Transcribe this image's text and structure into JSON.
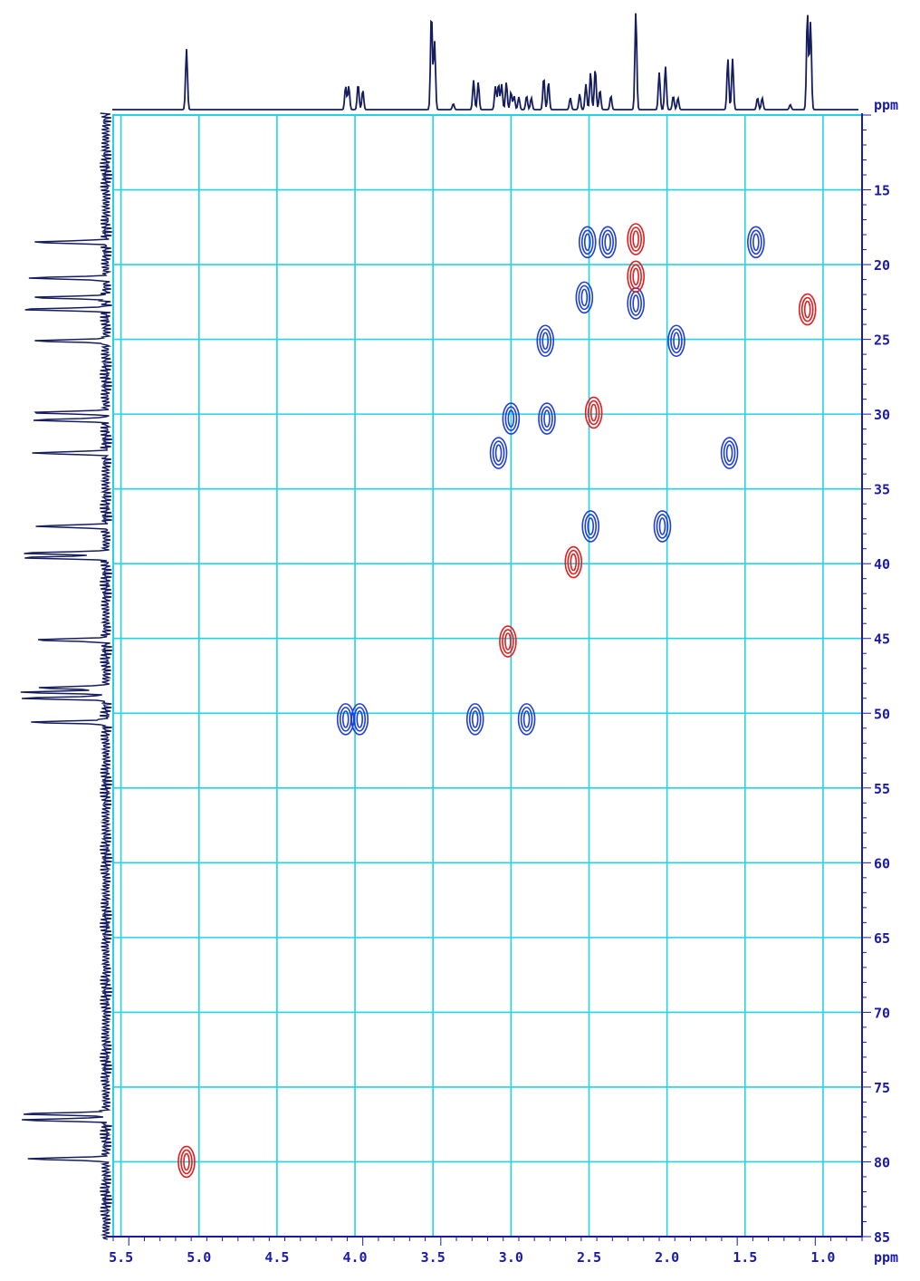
{
  "chart_data": {
    "type": "heatmap",
    "subtype": "2D NMR HSQC contour plot",
    "x_axis": {
      "unit_label": "ppm",
      "range": [
        5.55,
        0.75
      ],
      "reversed": true,
      "ticks": [
        5.5,
        5.0,
        4.5,
        4.0,
        3.5,
        3.0,
        2.5,
        2.0,
        1.5,
        1.0
      ],
      "tick_labels": [
        "5.5",
        "5.0",
        "4.5",
        "4.0",
        "3.5",
        "3.0",
        "2.5",
        "2.0",
        "1.5",
        "1.0"
      ]
    },
    "y_axis": {
      "unit_label": "ppm",
      "range": [
        10,
        85
      ],
      "ticks": [
        15,
        20,
        25,
        30,
        35,
        40,
        45,
        50,
        55,
        60,
        65,
        70,
        75,
        80,
        85
      ],
      "tick_labels": [
        "15",
        "20",
        "25",
        "30",
        "35",
        "40",
        "45",
        "50",
        "55",
        "60",
        "65",
        "70",
        "75",
        "80",
        "85"
      ]
    },
    "grid": true,
    "colors": {
      "grid": "#22d3e6",
      "axis": "#1a1aa8",
      "spectrum": "#151d5e",
      "positive_contour": "#1f3fd6",
      "negative_contour": "#e31e1e"
    },
    "series": [
      {
        "phase": "positive",
        "points": [
          {
            "x": 2.38,
            "y": 18.5
          },
          {
            "x": 1.43,
            "y": 18.5
          },
          {
            "x": 2.53,
            "y": 22.2
          },
          {
            "x": 2.78,
            "y": 25.1
          },
          {
            "x": 1.94,
            "y": 25.1
          },
          {
            "x": 3.0,
            "y": 30.3
          },
          {
            "x": 2.77,
            "y": 30.3
          },
          {
            "x": 3.08,
            "y": 32.6
          },
          {
            "x": 1.6,
            "y": 32.6
          },
          {
            "x": 2.49,
            "y": 37.5
          },
          {
            "x": 2.03,
            "y": 37.5
          },
          {
            "x": 4.06,
            "y": 50.4
          },
          {
            "x": 3.97,
            "y": 50.4
          },
          {
            "x": 3.23,
            "y": 50.4
          },
          {
            "x": 2.9,
            "y": 50.4
          },
          {
            "x": 2.2,
            "y": 22.6
          },
          {
            "x": 2.51,
            "y": 18.5
          }
        ]
      },
      {
        "phase": "negative",
        "points": [
          {
            "x": 2.2,
            "y": 20.8
          },
          {
            "x": 1.1,
            "y": 23.0
          },
          {
            "x": 2.47,
            "y": 29.9
          },
          {
            "x": 2.6,
            "y": 39.9
          },
          {
            "x": 3.02,
            "y": 45.2
          },
          {
            "x": 5.08,
            "y": 80.0
          },
          {
            "x": 2.2,
            "y": 18.3
          }
        ]
      }
    ],
    "projection_1h": {
      "peaks": [
        {
          "x": 5.08,
          "h": 0.62
        },
        {
          "x": 4.06,
          "h": 0.24
        },
        {
          "x": 4.04,
          "h": 0.24
        },
        {
          "x": 3.98,
          "h": 0.26
        },
        {
          "x": 3.95,
          "h": 0.2
        },
        {
          "x": 3.51,
          "h": 1.0
        },
        {
          "x": 3.49,
          "h": 0.7
        },
        {
          "x": 3.37,
          "h": 0.06
        },
        {
          "x": 3.24,
          "h": 0.3
        },
        {
          "x": 3.21,
          "h": 0.28
        },
        {
          "x": 3.1,
          "h": 0.24
        },
        {
          "x": 3.08,
          "h": 0.26
        },
        {
          "x": 3.06,
          "h": 0.26
        },
        {
          "x": 3.03,
          "h": 0.28
        },
        {
          "x": 3.0,
          "h": 0.18
        },
        {
          "x": 2.98,
          "h": 0.14
        },
        {
          "x": 2.95,
          "h": 0.13
        },
        {
          "x": 2.9,
          "h": 0.14
        },
        {
          "x": 2.87,
          "h": 0.12
        },
        {
          "x": 2.79,
          "h": 0.33
        },
        {
          "x": 2.76,
          "h": 0.28
        },
        {
          "x": 2.62,
          "h": 0.12
        },
        {
          "x": 2.56,
          "h": 0.16
        },
        {
          "x": 2.52,
          "h": 0.26
        },
        {
          "x": 2.49,
          "h": 0.38
        },
        {
          "x": 2.46,
          "h": 0.42
        },
        {
          "x": 2.43,
          "h": 0.2
        },
        {
          "x": 2.36,
          "h": 0.14
        },
        {
          "x": 2.2,
          "h": 1.0
        },
        {
          "x": 2.05,
          "h": 0.38
        },
        {
          "x": 2.01,
          "h": 0.44
        },
        {
          "x": 1.96,
          "h": 0.14
        },
        {
          "x": 1.93,
          "h": 0.12
        },
        {
          "x": 1.61,
          "h": 0.52
        },
        {
          "x": 1.58,
          "h": 0.52
        },
        {
          "x": 1.42,
          "h": 0.12
        },
        {
          "x": 1.39,
          "h": 0.12
        },
        {
          "x": 1.21,
          "h": 0.05
        },
        {
          "x": 1.1,
          "h": 1.0
        },
        {
          "x": 1.08,
          "h": 0.9
        }
      ]
    },
    "projection_13c": {
      "peaks": [
        {
          "y": 18.5,
          "h": 0.86
        },
        {
          "y": 20.9,
          "h": 0.9
        },
        {
          "y": 22.2,
          "h": 0.86
        },
        {
          "y": 23.0,
          "h": 1.0
        },
        {
          "y": 25.1,
          "h": 0.84
        },
        {
          "y": 29.9,
          "h": 0.9
        },
        {
          "y": 30.4,
          "h": 0.86
        },
        {
          "y": 32.6,
          "h": 0.86
        },
        {
          "y": 37.5,
          "h": 0.82
        },
        {
          "y": 39.3,
          "h": 1.0
        },
        {
          "y": 39.6,
          "h": 1.0
        },
        {
          "y": 45.1,
          "h": 0.84
        },
        {
          "y": 48.3,
          "h": 0.8
        },
        {
          "y": 48.6,
          "h": 1.0
        },
        {
          "y": 49.0,
          "h": 1.0
        },
        {
          "y": 50.6,
          "h": 0.88
        },
        {
          "y": 76.8,
          "h": 1.0
        },
        {
          "y": 77.2,
          "h": 1.0
        },
        {
          "y": 79.8,
          "h": 0.92
        }
      ]
    }
  }
}
